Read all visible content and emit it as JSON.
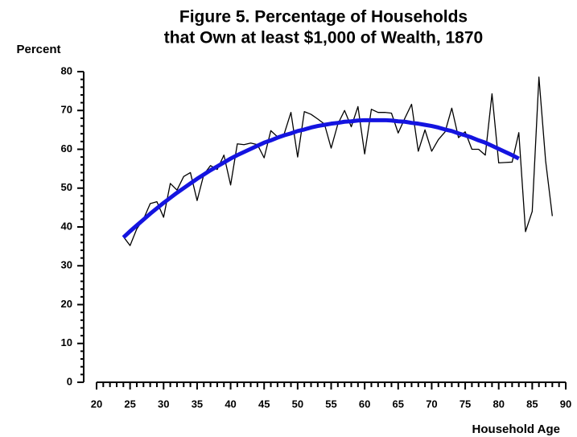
{
  "chart_data": {
    "type": "line",
    "title": [
      "Figure 5. Percentage of Households",
      "that Own at least $1,000 of Wealth, 1870"
    ],
    "ylabel": "Percent",
    "xlabel": "Household Age",
    "x": [
      24,
      25,
      26,
      27,
      28,
      29,
      30,
      31,
      32,
      33,
      34,
      35,
      36,
      37,
      38,
      39,
      40,
      41,
      42,
      43,
      44,
      45,
      46,
      47,
      48,
      49,
      50,
      51,
      52,
      53,
      54,
      55,
      56,
      57,
      58,
      59,
      60,
      61,
      62,
      63,
      64,
      65,
      66,
      67,
      68,
      69,
      70,
      71,
      72,
      73,
      74,
      75,
      76,
      77,
      78,
      79,
      80,
      81,
      82,
      83,
      84,
      85,
      86,
      87,
      88
    ],
    "series": [
      {
        "color": "#000000",
        "values": [
          37.5,
          35.2,
          39.5,
          42,
          46,
          46.5,
          42.5,
          51.2,
          49.5,
          53,
          54,
          46.8,
          53.5,
          55.8,
          54.8,
          58.5,
          50.8,
          61.4,
          61.2,
          61.6,
          61.2,
          57.8,
          64.8,
          63.2,
          64,
          69.5,
          58,
          69.7,
          69,
          67.8,
          66.5,
          60.3,
          66.5,
          70,
          65.8,
          71,
          58.8,
          70.3,
          69.5,
          69.5,
          69.3,
          64.2,
          68,
          71.6,
          59.5,
          65,
          59.5,
          62.5,
          64.5,
          70.6,
          63,
          64.5,
          60,
          60,
          58.5,
          74.3,
          56.5,
          56.6,
          56.7,
          64.3,
          38.8,
          44,
          78.6,
          57,
          42.8
        ]
      },
      {
        "color": "#1414e0",
        "values": [
          37.3,
          38.9,
          40.4,
          41.9,
          43.4,
          44.8,
          46.2,
          47.5,
          48.8,
          50.0,
          51.2,
          52.4,
          53.5,
          54.6,
          55.6,
          56.6,
          57.6,
          58.5,
          59.3,
          60.1,
          60.9,
          61.7,
          62.3,
          63.0,
          63.6,
          64.1,
          64.7,
          65.1,
          65.6,
          66.0,
          66.3,
          66.6,
          66.8,
          67.1,
          67.2,
          67.4,
          67.5,
          67.5,
          67.5,
          67.5,
          67.4,
          67.2,
          67.1,
          66.8,
          66.6,
          66.3,
          66.0,
          65.6,
          65.1,
          64.7,
          64.1,
          63.6,
          63.0,
          62.3,
          61.7,
          60.9,
          60.1,
          59.3,
          58.5,
          57.6,
          null,
          null,
          null,
          null,
          null
        ]
      }
    ],
    "xlim": [
      20,
      90
    ],
    "xticks": [
      20,
      25,
      30,
      35,
      40,
      45,
      50,
      55,
      60,
      65,
      70,
      75,
      80,
      85,
      90
    ],
    "ylim": [
      0,
      80
    ],
    "yticks": [
      0,
      10,
      20,
      30,
      40,
      50,
      60,
      70,
      80
    ]
  }
}
